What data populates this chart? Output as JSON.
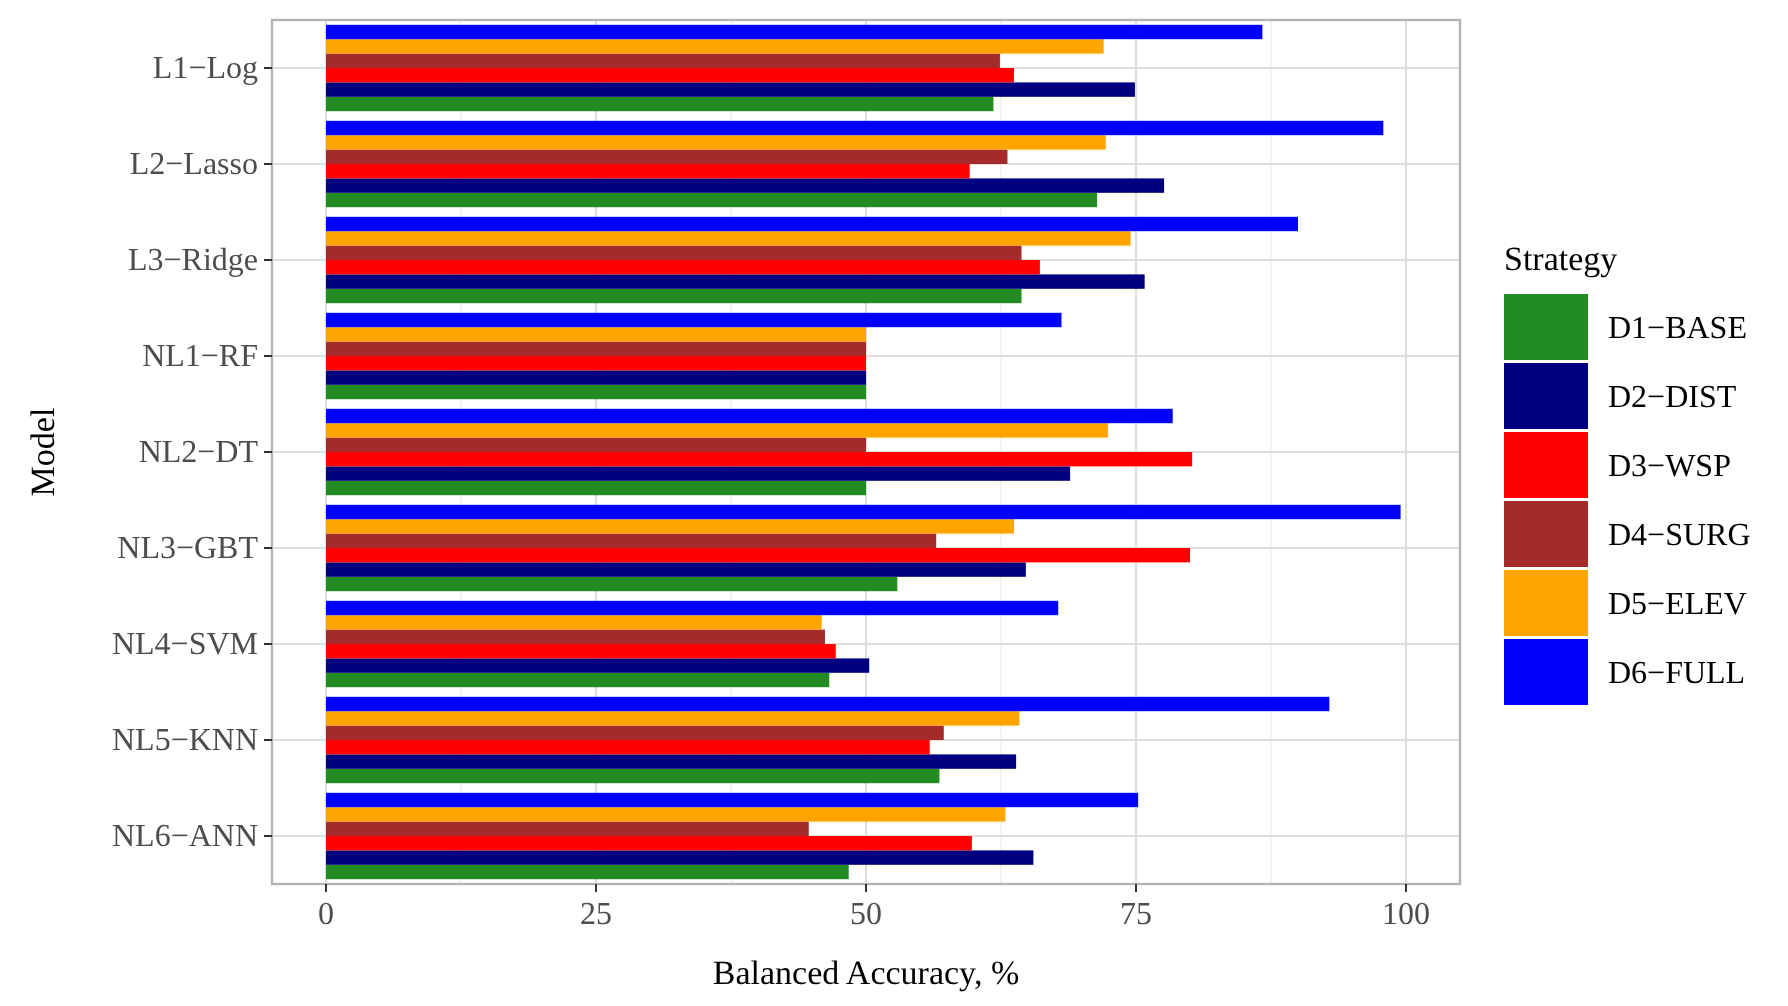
{
  "chart_data": {
    "type": "bar",
    "orientation": "horizontal",
    "xlabel": "Balanced Accuracy, %",
    "ylabel": "Model",
    "legend_title": "Strategy",
    "legend": "right",
    "grid": true,
    "categories": [
      "L1−Log",
      "L2−Lasso",
      "L3−Ridge",
      "NL1−RF",
      "NL2−DT",
      "NL3−GBT",
      "NL4−SVM",
      "NL5−KNN",
      "NL6−ANN"
    ],
    "xlim": [
      -5,
      105
    ],
    "xticks": [
      0,
      25,
      50,
      75,
      100
    ],
    "series": [
      {
        "name": "D1−BASE",
        "color": "#228b22",
        "values": [
          61.8,
          71.4,
          64.4,
          50.0,
          50.0,
          52.9,
          46.6,
          56.8,
          48.4
        ]
      },
      {
        "name": "D2−DIST",
        "color": "#000080",
        "values": [
          74.9,
          77.6,
          75.8,
          50.0,
          68.9,
          64.8,
          50.3,
          63.9,
          65.5
        ]
      },
      {
        "name": "D3−WSP",
        "color": "#ff0000",
        "values": [
          63.7,
          59.6,
          66.1,
          50.0,
          80.2,
          80.0,
          47.2,
          55.9,
          59.8
        ]
      },
      {
        "name": "D4−SURG",
        "color": "#a52a2a",
        "values": [
          62.4,
          63.1,
          64.4,
          50.0,
          50.0,
          56.5,
          46.2,
          57.2,
          44.7
        ]
      },
      {
        "name": "D5−ELEV",
        "color": "#ffa500",
        "values": [
          72.0,
          72.2,
          74.5,
          50.0,
          72.4,
          63.7,
          45.9,
          64.2,
          62.9
        ]
      },
      {
        "name": "D6−FULL",
        "color": "#0000ff",
        "values": [
          86.7,
          97.9,
          90.0,
          68.1,
          78.4,
          99.5,
          67.8,
          92.9,
          75.2
        ]
      }
    ]
  }
}
